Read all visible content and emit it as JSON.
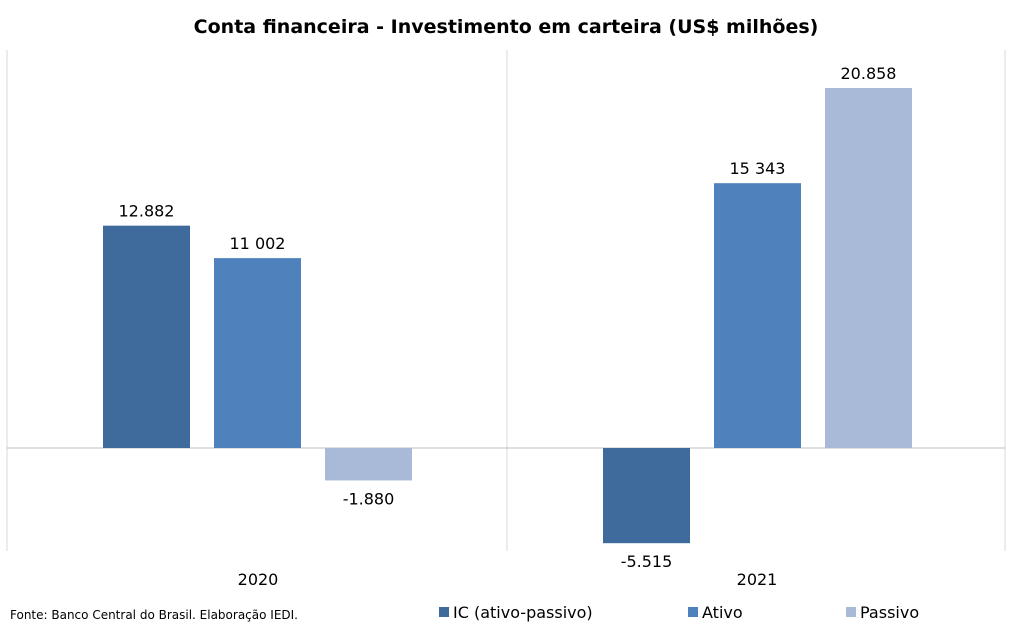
{
  "chart_data": {
    "type": "bar",
    "title": "Conta financeira - Investimento em carteira (US$ milhões)",
    "categories": [
      "2020",
      "2021"
    ],
    "series": [
      {
        "name": "IC (ativo-passivo)",
        "color": "#3F6A9C",
        "values": [
          12882,
          -5515
        ],
        "labels": [
          "12.882",
          "-5.515"
        ]
      },
      {
        "name": "Ativo",
        "color": "#4F81BD",
        "values": [
          11002,
          15343
        ],
        "labels": [
          "11 002",
          "15 343"
        ]
      },
      {
        "name": "Passivo",
        "color": "#A9B9D8",
        "values": [
          -1880,
          20858
        ],
        "labels": [
          "-1.880",
          "20.858"
        ]
      }
    ],
    "ylim": [
      -7000,
      23000
    ],
    "grid": false,
    "legend": "bottom",
    "source": "Fonte: Banco Central do Brasil. Elaboração IEDI."
  }
}
